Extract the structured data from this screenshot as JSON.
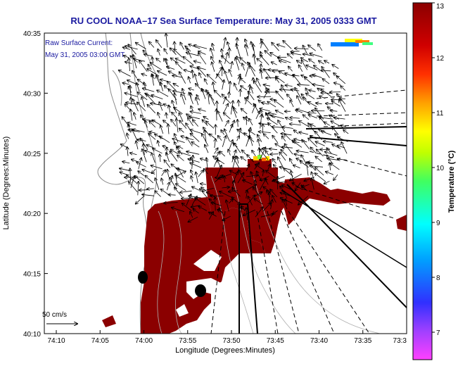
{
  "chart_data": {
    "type": "map",
    "title": "RU COOL  NOAA–17  Sea Surface Temperature:  May 31, 2005 0333 GMT",
    "annotation": {
      "line1": "Raw Surface Current:",
      "line2": "May 31, 2005 03:00 GMT"
    },
    "scale_label": "50 cm/s",
    "xlabel": "Longitude (Degrees:Minutes)",
    "ylabel": "Latitude (Degrees:Minutes)",
    "x_ticks": [
      "74:10",
      "74:05",
      "74:00",
      "73:55",
      "73:50",
      "73:45",
      "73:40",
      "73:35",
      "73:3"
    ],
    "y_ticks": [
      "40:10",
      "40:15",
      "40:20",
      "40:25",
      "40:30",
      "40:35"
    ],
    "colorbar": {
      "label": "Temperature (°C)",
      "ticks": [
        "7",
        "8",
        "9",
        "10",
        "11",
        "12",
        "13"
      ],
      "range": [
        6.5,
        13
      ],
      "colors": [
        "#ff40ff",
        "#a040ff",
        "#3030ff",
        "#00a0ff",
        "#00ffff",
        "#40ff60",
        "#c0ff00",
        "#ffff00",
        "#ffa000",
        "#ff3000",
        "#d00000",
        "#8b0000"
      ]
    },
    "sst_fill_color": "#8b0000"
  }
}
